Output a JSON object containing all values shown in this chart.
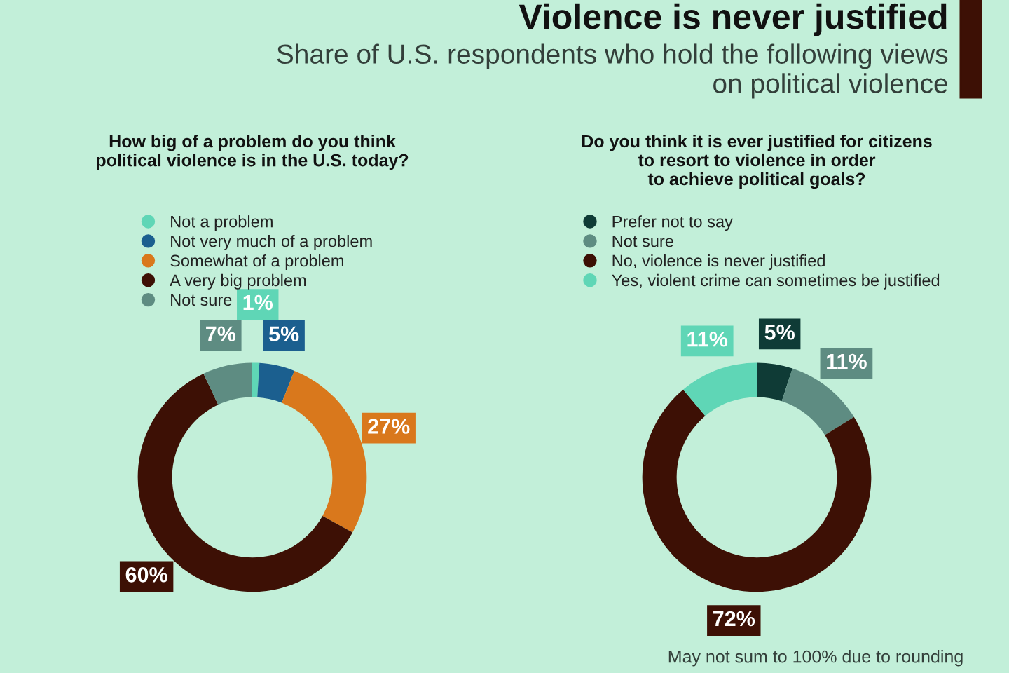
{
  "chart_data": [
    {
      "type": "donut",
      "xlabel": "How big of a problem do you think\npolitical violence is in the U.S. today?",
      "categories": [
        "Not a problem",
        "Not very much of a problem",
        "Somewhat of a problem",
        "A very big problem",
        "Not sure"
      ],
      "values": [
        1,
        5,
        27,
        60,
        7
      ],
      "value_labels": [
        "1%",
        "5%",
        "27%",
        "60%",
        "7%"
      ],
      "colors": [
        "#5fd6b6",
        "#1b5f8f",
        "#d9781c",
        "#3d1005",
        "#5e8c82"
      ],
      "legend": "top"
    },
    {
      "type": "donut",
      "title": "Violence is never justified",
      "subtitle": "Share of U.S. respondents who hold the following views\non political violence",
      "xlabel": "Do you think it is ever justified for citizens\nto resort to violence in order\nto achieve political goals?",
      "categories": [
        "Prefer not to say",
        "Not sure",
        "No, violence is never justified",
        "Yes, violent crime can sometimes be justified"
      ],
      "values": [
        5,
        11,
        72,
        11
      ],
      "value_labels": [
        "5%",
        "11%",
        "72%",
        "11%"
      ],
      "colors": [
        "#0f3b36",
        "#5e8c82",
        "#3d1005",
        "#5fd6b6"
      ],
      "legend": "top",
      "annotations": [
        "May not sum to 100% due to rounding"
      ]
    }
  ]
}
